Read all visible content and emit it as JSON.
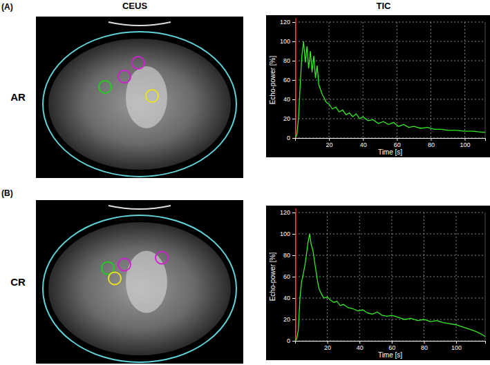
{
  "figure": {
    "column_titles": [
      "CEUS",
      "TIC"
    ],
    "panels": [
      {
        "label": "(A)",
        "row_label": "AR"
      },
      {
        "label": "(B)",
        "row_label": "CR"
      }
    ]
  },
  "chart_data": [
    {
      "type": "line",
      "x_label": "Time [s]",
      "y_label": "Echo-power [%]",
      "x": [
        0,
        1,
        2,
        3,
        4,
        5,
        6,
        7,
        8,
        9,
        10,
        11,
        12,
        13,
        14,
        15,
        16,
        17,
        18,
        19,
        20,
        22,
        24,
        26,
        28,
        30,
        32,
        34,
        36,
        38,
        40,
        43,
        46,
        49,
        52,
        55,
        58,
        61,
        64,
        67,
        70,
        74,
        78,
        82,
        86,
        90,
        95,
        100,
        105,
        110,
        112
      ],
      "values": [
        0,
        3,
        20,
        55,
        85,
        100,
        78,
        95,
        72,
        90,
        68,
        85,
        62,
        75,
        55,
        50,
        45,
        42,
        38,
        36,
        35,
        30,
        32,
        27,
        29,
        24,
        26,
        22,
        25,
        20,
        22,
        18,
        19,
        15,
        17,
        14,
        16,
        12,
        14,
        11,
        12,
        10,
        11,
        9,
        9,
        8,
        8,
        7,
        7,
        6,
        6
      ],
      "color": "#33ee22",
      "xlim": [
        0,
        112
      ],
      "xticks": [
        20,
        40,
        60,
        80,
        100
      ],
      "ylim": [
        0,
        120
      ],
      "yticks": [
        0,
        20,
        40,
        60,
        80,
        100,
        120
      ],
      "grid": true
    },
    {
      "type": "line",
      "x_label": "Time [s]",
      "y_label": "Echo-power [%]",
      "x": [
        0,
        1,
        2,
        3,
        4,
        5,
        6,
        7,
        8,
        9,
        10,
        11,
        12,
        13,
        14,
        15,
        16,
        17,
        18,
        20,
        22,
        24,
        26,
        28,
        30,
        33,
        36,
        39,
        42,
        45,
        48,
        51,
        54,
        57,
        60,
        64,
        68,
        72,
        76,
        80,
        84,
        88,
        92,
        96,
        100,
        104,
        108,
        112,
        116,
        118
      ],
      "values": [
        0,
        2,
        10,
        40,
        55,
        62,
        70,
        80,
        92,
        100,
        90,
        85,
        75,
        65,
        55,
        48,
        45,
        42,
        40,
        41,
        38,
        36,
        37,
        33,
        34,
        31,
        30,
        28,
        29,
        26,
        25,
        27,
        24,
        23,
        24,
        22,
        20,
        21,
        19,
        20,
        18,
        19,
        17,
        16,
        15,
        13,
        11,
        9,
        6,
        4
      ],
      "color": "#33ee22",
      "xlim": [
        0,
        118
      ],
      "xticks": [
        20,
        40,
        60,
        80,
        100
      ],
      "ylim": [
        0,
        120
      ],
      "yticks": [
        0,
        20,
        40,
        60,
        80,
        100,
        120
      ],
      "grid": true
    }
  ]
}
